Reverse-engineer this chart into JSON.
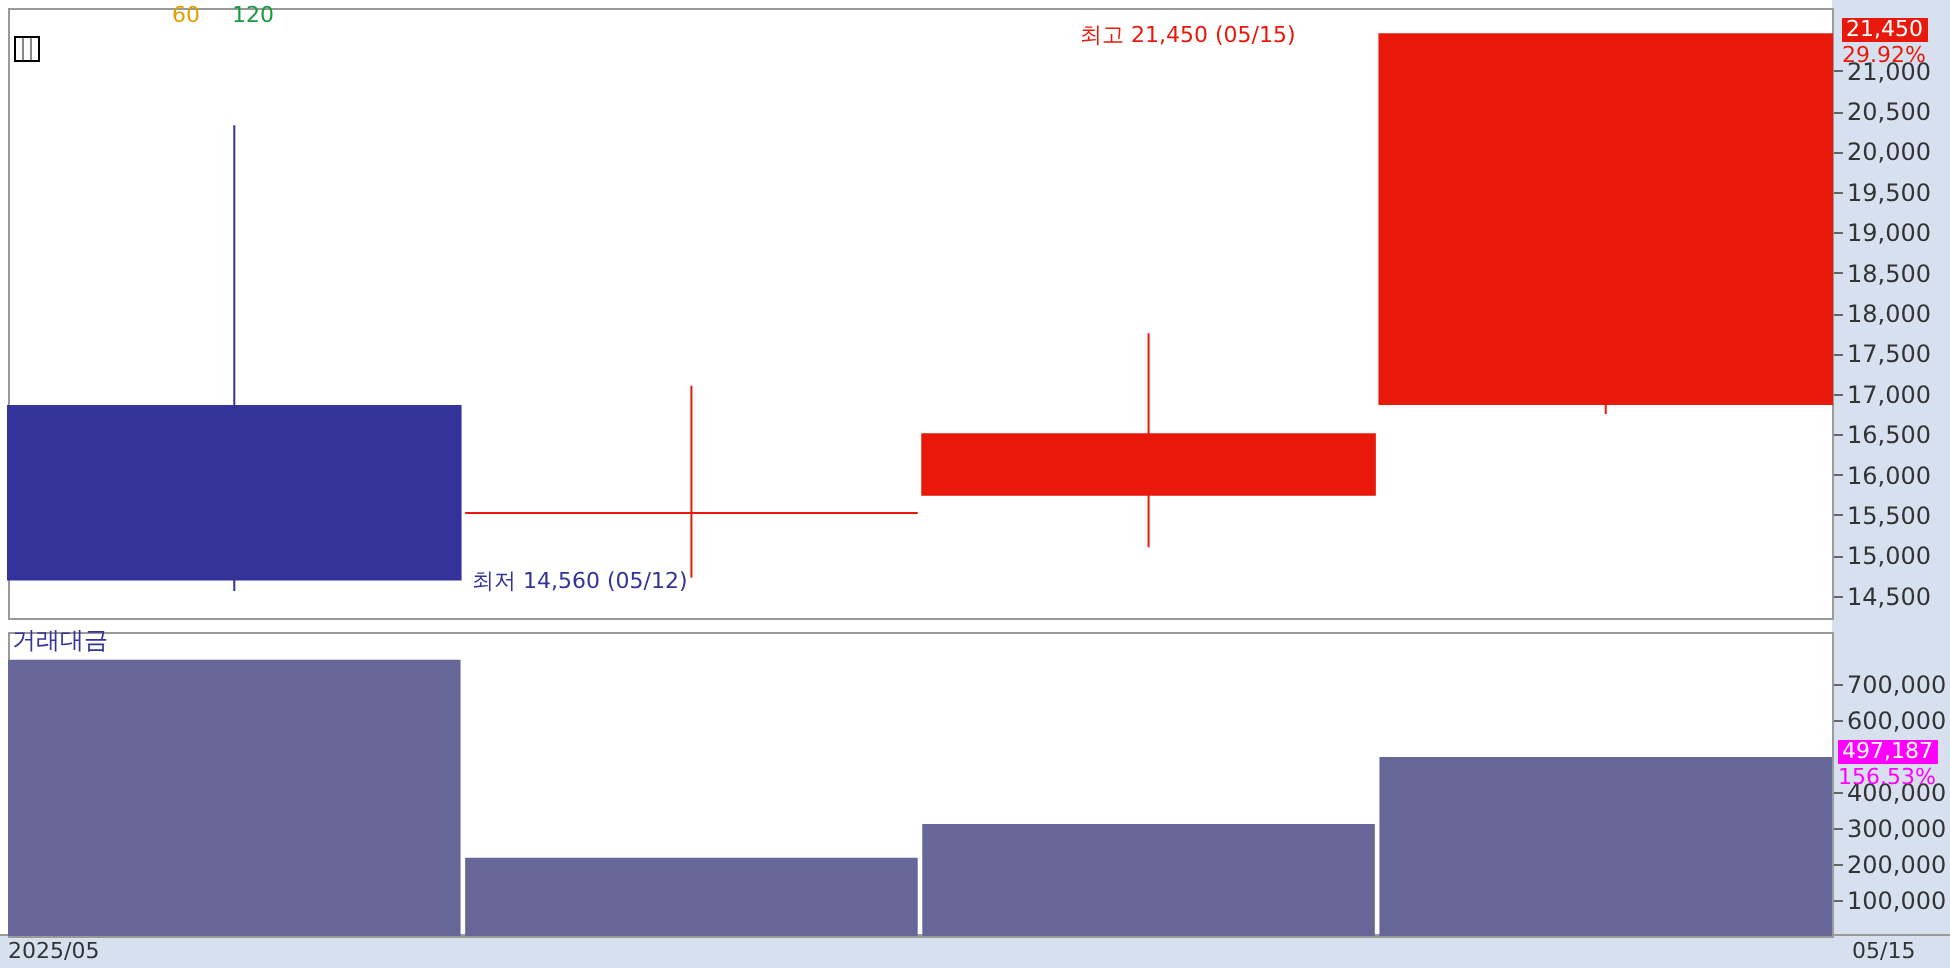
{
  "chart_data": [
    {
      "type": "candlestick",
      "categories": [
        null,
        null,
        null,
        null
      ],
      "ohlc": [
        [
          16850,
          20325,
          14560,
          14700
        ],
        [
          15525,
          17100,
          14725,
          15525
        ],
        [
          15750,
          17750,
          15100,
          16500
        ],
        [
          16875,
          21450,
          16750,
          21450
        ]
      ],
      "colors": [
        "#333399",
        "#e8190a",
        "#e8190a",
        "#e8190a"
      ],
      "ylim": [
        14225,
        21775
      ],
      "yticks": [
        {
          "value": 14500,
          "label": "14,500"
        },
        {
          "value": 15000,
          "label": "15,000"
        },
        {
          "value": 15500,
          "label": "15,500"
        },
        {
          "value": 16000,
          "label": "16,000"
        },
        {
          "value": 16500,
          "label": "16,500"
        },
        {
          "value": 17000,
          "label": "17,000"
        },
        {
          "value": 17500,
          "label": "17,500"
        },
        {
          "value": 18000,
          "label": "18,000"
        },
        {
          "value": 18500,
          "label": "18,500"
        },
        {
          "value": 19000,
          "label": "19,000"
        },
        {
          "value": 19500,
          "label": "19,500"
        },
        {
          "value": 20000,
          "label": "20,000"
        },
        {
          "value": 20500,
          "label": "20,500"
        },
        {
          "value": 21000,
          "label": "21,000"
        }
      ],
      "annotations": [
        "60",
        "120",
        "최고 21,450 (05/15)",
        "최저 14,560 (05/12)",
        "21,450",
        "29.92%",
        "2025/05",
        "05/15"
      ]
    },
    {
      "type": "bar",
      "title": "거래대금",
      "categories": [
        null,
        null,
        null,
        null
      ],
      "values": [
        767000,
        217000,
        311000,
        497187
      ],
      "color": "#666699",
      "ylim": [
        0,
        844000
      ],
      "yticks": [
        {
          "value": 100000,
          "label": "100,000"
        },
        {
          "value": 200000,
          "label": "200,000"
        },
        {
          "value": 300000,
          "label": "300,000"
        },
        {
          "value": 400000,
          "label": "400,000"
        },
        {
          "value": 600000,
          "label": "600,000"
        },
        {
          "value": 700000,
          "label": "700,000"
        }
      ],
      "annotations": [
        "497,187",
        "156.53%"
      ]
    }
  ]
}
